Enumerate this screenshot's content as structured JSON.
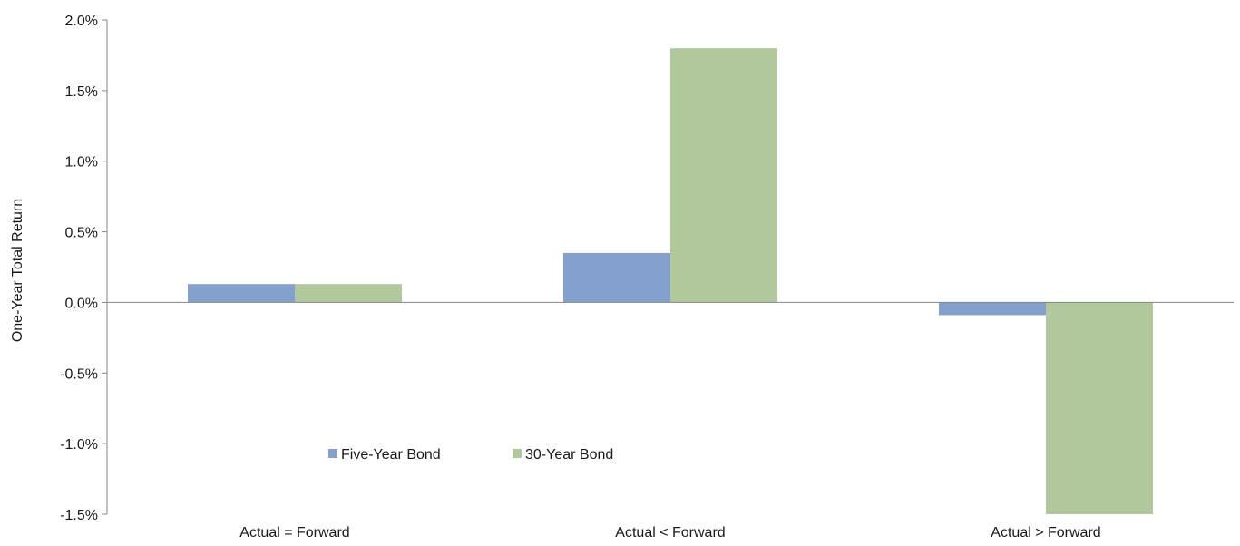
{
  "chart_data": {
    "type": "bar",
    "title": "",
    "xlabel": "",
    "ylabel": "One-Year Total Return",
    "categories": [
      "Actual = Forward",
      "Actual < Forward",
      "Actual > Forward"
    ],
    "series": [
      {
        "name": "Five-Year Bond",
        "color": "#84a1cd",
        "values": [
          0.13,
          0.35,
          -0.09
        ]
      },
      {
        "name": "30-Year Bond",
        "color": "#b0c89c",
        "values": [
          0.13,
          1.8,
          -1.5
        ]
      }
    ],
    "ylim": [
      -1.5,
      2.0
    ],
    "yticks": [
      2.0,
      1.5,
      1.0,
      0.5,
      0.0,
      -0.5,
      -1.0,
      -1.5
    ],
    "ytick_labels": [
      "2.0%",
      "1.5%",
      "1.0%",
      "0.5%",
      "0.0%",
      "-0.5%",
      "-1.0%",
      "-1.5%"
    ],
    "grid": false,
    "legend_position": "inside-lower-left"
  }
}
